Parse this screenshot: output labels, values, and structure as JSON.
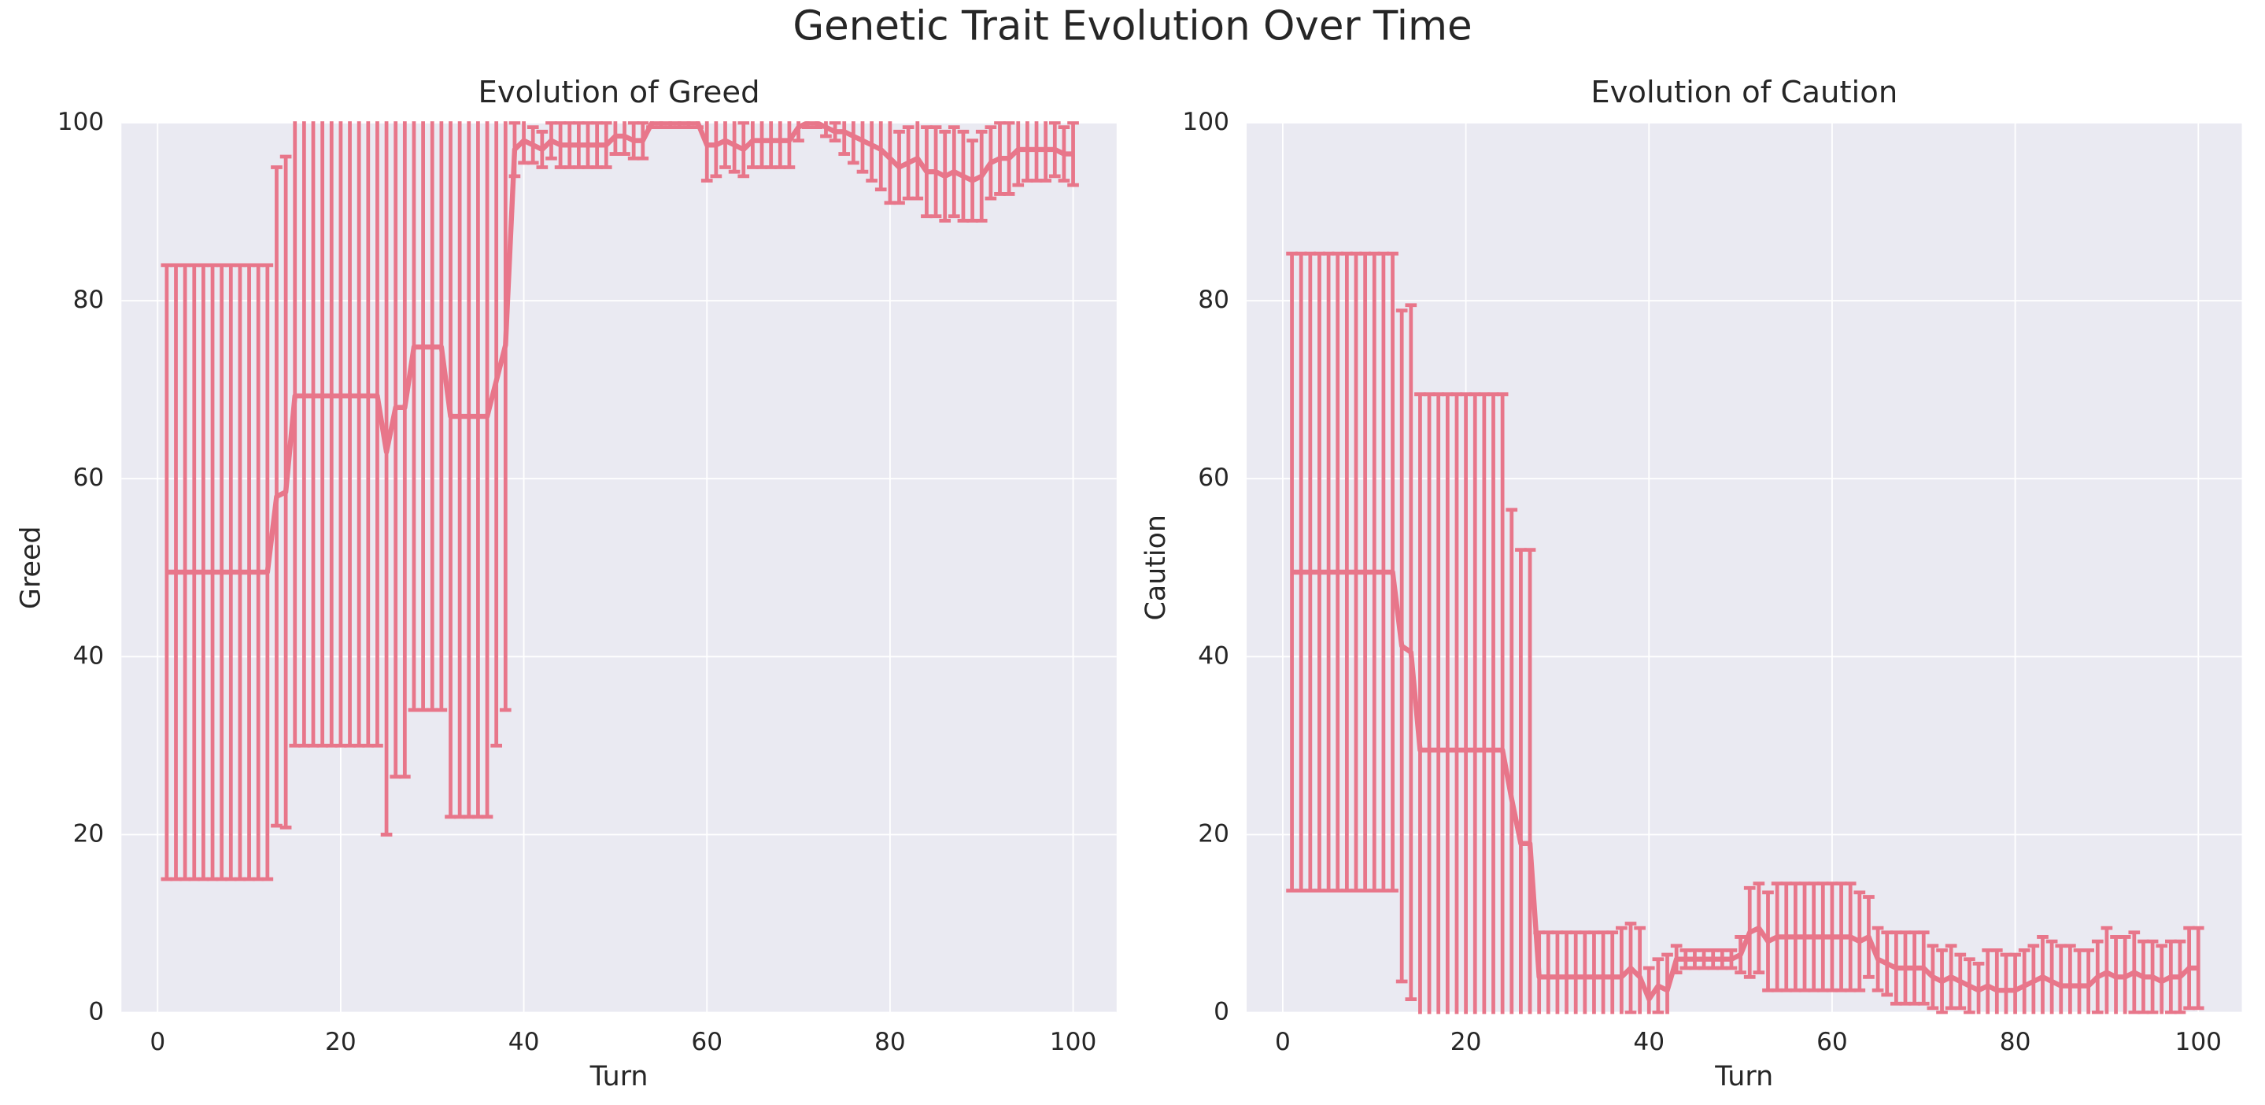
{
  "title": "Genetic Trait Evolution Over Time",
  "chart_data": [
    {
      "type": "line",
      "title": "Evolution of Greed",
      "xlabel": "Turn",
      "ylabel": "Greed",
      "xlim": [
        -3.95,
        104.75
      ],
      "ylim": [
        0,
        100
      ],
      "xticks": [
        0,
        20,
        40,
        60,
        80,
        100
      ],
      "yticks": [
        0,
        20,
        40,
        60,
        80,
        100
      ],
      "grid": true,
      "x": [
        1,
        2,
        3,
        4,
        5,
        6,
        7,
        8,
        9,
        10,
        11,
        12,
        13,
        14,
        15,
        16,
        17,
        18,
        19,
        20,
        21,
        22,
        23,
        24,
        25,
        26,
        27,
        28,
        29,
        30,
        31,
        32,
        33,
        34,
        35,
        36,
        37,
        38,
        39,
        40,
        41,
        42,
        43,
        44,
        45,
        46,
        47,
        48,
        49,
        50,
        51,
        52,
        53,
        54,
        55,
        56,
        57,
        58,
        59,
        60,
        61,
        62,
        63,
        64,
        65,
        66,
        67,
        68,
        69,
        70,
        71,
        72,
        73,
        74,
        75,
        76,
        77,
        78,
        79,
        80,
        81,
        82,
        83,
        84,
        85,
        86,
        87,
        88,
        89,
        90,
        91,
        92,
        93,
        94,
        95,
        96,
        97,
        98,
        99,
        100
      ],
      "series": [
        {
          "color": "#e8768a",
          "values": [
            49.5,
            49.5,
            49.5,
            49.5,
            49.5,
            49.5,
            49.5,
            49.5,
            49.5,
            49.5,
            49.5,
            49.5,
            58,
            58.5,
            69.3,
            69.3,
            69.3,
            69.3,
            69.3,
            69.3,
            69.3,
            69.3,
            69.3,
            69.3,
            63,
            68,
            68,
            74.8,
            74.8,
            74.8,
            74.8,
            67,
            67,
            67,
            67,
            67,
            71,
            75,
            97,
            98,
            97.5,
            97,
            98,
            97.5,
            97.5,
            97.5,
            97.5,
            97.5,
            97.5,
            98.5,
            98.5,
            98,
            98,
            100,
            100,
            100,
            100,
            100,
            100,
            97.5,
            97.5,
            98,
            97.5,
            97,
            98,
            98,
            98,
            98,
            98,
            99.5,
            100,
            100,
            99.5,
            99,
            99,
            98.5,
            98,
            97.5,
            97,
            96,
            95,
            95.5,
            96,
            94.5,
            94.5,
            94,
            94.5,
            94,
            93.5,
            94,
            95.5,
            96,
            96,
            97,
            97,
            97,
            97,
            97,
            96.5,
            96.5
          ],
          "errors": [
            34.5,
            34.5,
            34.5,
            34.5,
            34.5,
            34.5,
            34.5,
            34.5,
            34.5,
            34.5,
            34.5,
            34.5,
            37,
            37.7,
            39.3,
            39.3,
            39.3,
            39.3,
            39.3,
            39.3,
            39.3,
            39.3,
            39.3,
            39.3,
            43,
            41.5,
            41.5,
            40.8,
            40.8,
            40.8,
            40.8,
            45,
            45,
            45,
            45,
            45,
            41,
            41,
            3,
            2.5,
            2,
            2,
            2,
            2.5,
            2.5,
            2.5,
            2.5,
            2.5,
            2.5,
            2,
            2,
            2,
            2,
            0.5,
            0.5,
            0.5,
            0.5,
            0.5,
            0.5,
            4,
            3.5,
            3,
            3,
            3,
            3,
            3,
            3,
            3,
            3,
            1.5,
            0.5,
            0.5,
            1,
            1,
            2.5,
            3,
            3.5,
            4,
            4.5,
            5,
            4,
            4,
            4.5,
            5,
            5,
            5,
            5,
            5,
            4.5,
            5,
            4,
            4,
            4,
            4,
            3.5,
            3.5,
            3.5,
            3,
            3,
            3.5
          ]
        }
      ]
    },
    {
      "type": "line",
      "title": "Evolution of Caution",
      "xlabel": "Turn",
      "ylabel": "Caution",
      "xlim": [
        -3.95,
        104.75
      ],
      "ylim": [
        0,
        100
      ],
      "xticks": [
        0,
        20,
        40,
        60,
        80,
        100
      ],
      "yticks": [
        0,
        20,
        40,
        60,
        80,
        100
      ],
      "grid": true,
      "x": [
        1,
        2,
        3,
        4,
        5,
        6,
        7,
        8,
        9,
        10,
        11,
        12,
        13,
        14,
        15,
        16,
        17,
        18,
        19,
        20,
        21,
        22,
        23,
        24,
        25,
        26,
        27,
        28,
        29,
        30,
        31,
        32,
        33,
        34,
        35,
        36,
        37,
        38,
        39,
        40,
        41,
        42,
        43,
        44,
        45,
        46,
        47,
        48,
        49,
        50,
        51,
        52,
        53,
        54,
        55,
        56,
        57,
        58,
        59,
        60,
        61,
        62,
        63,
        64,
        65,
        66,
        67,
        68,
        69,
        70,
        71,
        72,
        73,
        74,
        75,
        76,
        77,
        78,
        79,
        80,
        81,
        82,
        83,
        84,
        85,
        86,
        87,
        88,
        89,
        90,
        91,
        92,
        93,
        94,
        95,
        96,
        97,
        98,
        99,
        100
      ],
      "series": [
        {
          "color": "#e8768a",
          "values": [
            49.5,
            49.5,
            49.5,
            49.5,
            49.5,
            49.5,
            49.5,
            49.5,
            49.5,
            49.5,
            49.5,
            49.5,
            41.2,
            40.5,
            29.5,
            29.5,
            29.5,
            29.5,
            29.5,
            29.5,
            29.5,
            29.5,
            29.5,
            29.5,
            24,
            19,
            19,
            4,
            4,
            4,
            4,
            4,
            4,
            4,
            4,
            4,
            4,
            5,
            4,
            1.5,
            3,
            2.5,
            6,
            6,
            6,
            6,
            6,
            6,
            6,
            6.5,
            9,
            9.5,
            8,
            8.5,
            8.5,
            8.5,
            8.5,
            8.5,
            8.5,
            8.5,
            8.5,
            8.5,
            8,
            8.5,
            6,
            5.5,
            5,
            5,
            5,
            5,
            4,
            3.5,
            4,
            3.5,
            3,
            2.5,
            3,
            2.5,
            2.5,
            2.5,
            3,
            3.5,
            4,
            3.5,
            3,
            3,
            3,
            3,
            4,
            4.5,
            4,
            4,
            4.5,
            4,
            4,
            3.5,
            4,
            4,
            5,
            5
          ],
          "errors": [
            35.8,
            35.8,
            35.8,
            35.8,
            35.8,
            35.8,
            35.8,
            35.8,
            35.8,
            35.8,
            35.8,
            35.8,
            37.7,
            39,
            40,
            40,
            40,
            40,
            40,
            40,
            40,
            40,
            40,
            40,
            32.5,
            33,
            33,
            5,
            5,
            5,
            5,
            5,
            5,
            5,
            5,
            5,
            5.5,
            5,
            5.5,
            3.5,
            3,
            4,
            1.5,
            1,
            1,
            1,
            1,
            1,
            1,
            2,
            5,
            5,
            5.5,
            6,
            6,
            6,
            6,
            6,
            6,
            6,
            6,
            6,
            5.5,
            4.5,
            3.5,
            3.5,
            4,
            4,
            4,
            4,
            3.5,
            3.5,
            3.5,
            3,
            3,
            3,
            4,
            4.5,
            4,
            4,
            4,
            4,
            4.5,
            4.5,
            4.5,
            4.5,
            4,
            4,
            4,
            5,
            4.5,
            4.5,
            4.5,
            4,
            4,
            4,
            4,
            4,
            4.5,
            4.5
          ]
        }
      ]
    }
  ]
}
